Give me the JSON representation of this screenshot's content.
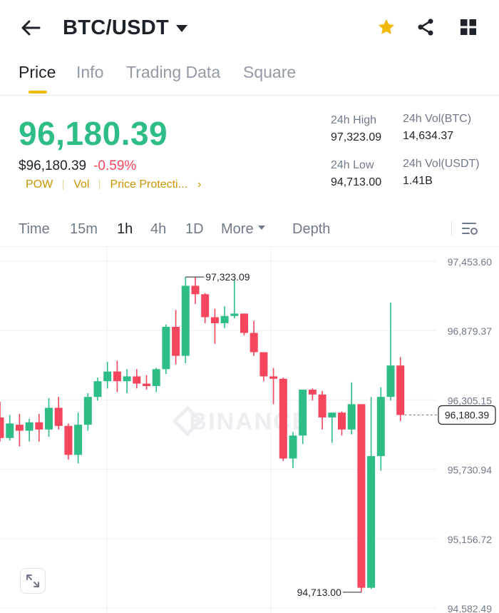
{
  "header": {
    "pair": "BTC/USDT",
    "icons": [
      "back-arrow-icon",
      "favorite-star-icon",
      "share-icon",
      "grid-menu-icon"
    ],
    "star_color": "#f0b90b"
  },
  "tabs": [
    {
      "label": "Price",
      "active": true
    },
    {
      "label": "Info",
      "active": false
    },
    {
      "label": "Trading Data",
      "active": false
    },
    {
      "label": "Square",
      "active": false
    }
  ],
  "price": {
    "last": "96,180.39",
    "usd": "$96,180.39",
    "change": "-0.59%",
    "tags": [
      "POW",
      "Vol",
      "Price Protecti..."
    ],
    "up_color": "#2ebd85",
    "down_color": "#f6465d"
  },
  "stats": {
    "high_label": "24h High",
    "high_value": "97,323.09",
    "low_label": "24h Low",
    "low_value": "94,713.00",
    "vol_btc_label": "24h Vol(BTC)",
    "vol_btc_value": "14,634.37",
    "vol_usdt_label": "24h Vol(USDT)",
    "vol_usdt_value": "1.41B"
  },
  "intervals": {
    "items": [
      "Time",
      "15m",
      "1h",
      "4h",
      "1D",
      "More",
      "Depth"
    ],
    "active": "1h"
  },
  "chart_data": {
    "type": "candlestick",
    "interval": "1h",
    "watermark": "BINANCE",
    "y_ticks": [
      "97,453.60",
      "96,879.37",
      "96,305.15",
      "95,730.94",
      "95,156.72",
      "94,582.49"
    ],
    "ylim": [
      94582.49,
      97453.6
    ],
    "current_price": "96,180.39",
    "high_marker": "97,323.09",
    "low_marker": "94,713.00",
    "candles": [
      {
        "o": 96160,
        "h": 96290,
        "l": 95960,
        "c": 95990
      },
      {
        "o": 95990,
        "h": 96180,
        "l": 95970,
        "c": 96110
      },
      {
        "o": 96100,
        "h": 96190,
        "l": 95920,
        "c": 96050
      },
      {
        "o": 96050,
        "h": 96150,
        "l": 95960,
        "c": 96120
      },
      {
        "o": 96120,
        "h": 96190,
        "l": 95960,
        "c": 96060
      },
      {
        "o": 96060,
        "h": 96320,
        "l": 96000,
        "c": 96240
      },
      {
        "o": 96240,
        "h": 96330,
        "l": 96060,
        "c": 96090
      },
      {
        "o": 96090,
        "h": 96110,
        "l": 95810,
        "c": 95850
      },
      {
        "o": 95850,
        "h": 96200,
        "l": 95780,
        "c": 96100
      },
      {
        "o": 96100,
        "h": 96360,
        "l": 96050,
        "c": 96330
      },
      {
        "o": 96330,
        "h": 96490,
        "l": 96300,
        "c": 96460
      },
      {
        "o": 96460,
        "h": 96620,
        "l": 96400,
        "c": 96540
      },
      {
        "o": 96540,
        "h": 96630,
        "l": 96370,
        "c": 96460
      },
      {
        "o": 96460,
        "h": 96560,
        "l": 96360,
        "c": 96500
      },
      {
        "o": 96500,
        "h": 96560,
        "l": 96400,
        "c": 96440
      },
      {
        "o": 96440,
        "h": 96510,
        "l": 96390,
        "c": 96420
      },
      {
        "o": 96420,
        "h": 96570,
        "l": 96370,
        "c": 96560
      },
      {
        "o": 96560,
        "h": 96930,
        "l": 96520,
        "c": 96910
      },
      {
        "o": 96910,
        "h": 97050,
        "l": 96600,
        "c": 96670
      },
      {
        "o": 96670,
        "h": 97323.09,
        "l": 96610,
        "c": 97250
      },
      {
        "o": 97250,
        "h": 97320,
        "l": 97100,
        "c": 97180
      },
      {
        "o": 97180,
        "h": 97190,
        "l": 96940,
        "c": 96990
      },
      {
        "o": 96990,
        "h": 97060,
        "l": 96770,
        "c": 96940
      },
      {
        "o": 96940,
        "h": 97080,
        "l": 96900,
        "c": 97000
      },
      {
        "o": 97000,
        "h": 97300,
        "l": 96980,
        "c": 97020
      },
      {
        "o": 97020,
        "h": 97020,
        "l": 96840,
        "c": 96860
      },
      {
        "o": 96860,
        "h": 96960,
        "l": 96670,
        "c": 96700
      },
      {
        "o": 96700,
        "h": 96700,
        "l": 96460,
        "c": 96500
      },
      {
        "o": 96500,
        "h": 96570,
        "l": 96270,
        "c": 96480
      },
      {
        "o": 96480,
        "h": 96490,
        "l": 95800,
        "c": 95820
      },
      {
        "o": 95820,
        "h": 96040,
        "l": 95740,
        "c": 96010
      },
      {
        "o": 96010,
        "h": 96390,
        "l": 95940,
        "c": 96390
      },
      {
        "o": 96390,
        "h": 96400,
        "l": 96300,
        "c": 96350
      },
      {
        "o": 96350,
        "h": 96380,
        "l": 96060,
        "c": 96160
      },
      {
        "o": 96160,
        "h": 96200,
        "l": 95950,
        "c": 96200
      },
      {
        "o": 96200,
        "h": 96210,
        "l": 96010,
        "c": 96060
      },
      {
        "o": 96060,
        "h": 96450,
        "l": 96020,
        "c": 96270
      },
      {
        "o": 96270,
        "h": 96270,
        "l": 94713.0,
        "c": 94750
      },
      {
        "o": 94750,
        "h": 96330,
        "l": 94740,
        "c": 95840
      },
      {
        "o": 95840,
        "h": 96410,
        "l": 95720,
        "c": 96330
      },
      {
        "o": 96330,
        "h": 97110,
        "l": 96300,
        "c": 96590
      },
      {
        "o": 96590,
        "h": 96660,
        "l": 96130,
        "c": 96180.39
      }
    ]
  }
}
